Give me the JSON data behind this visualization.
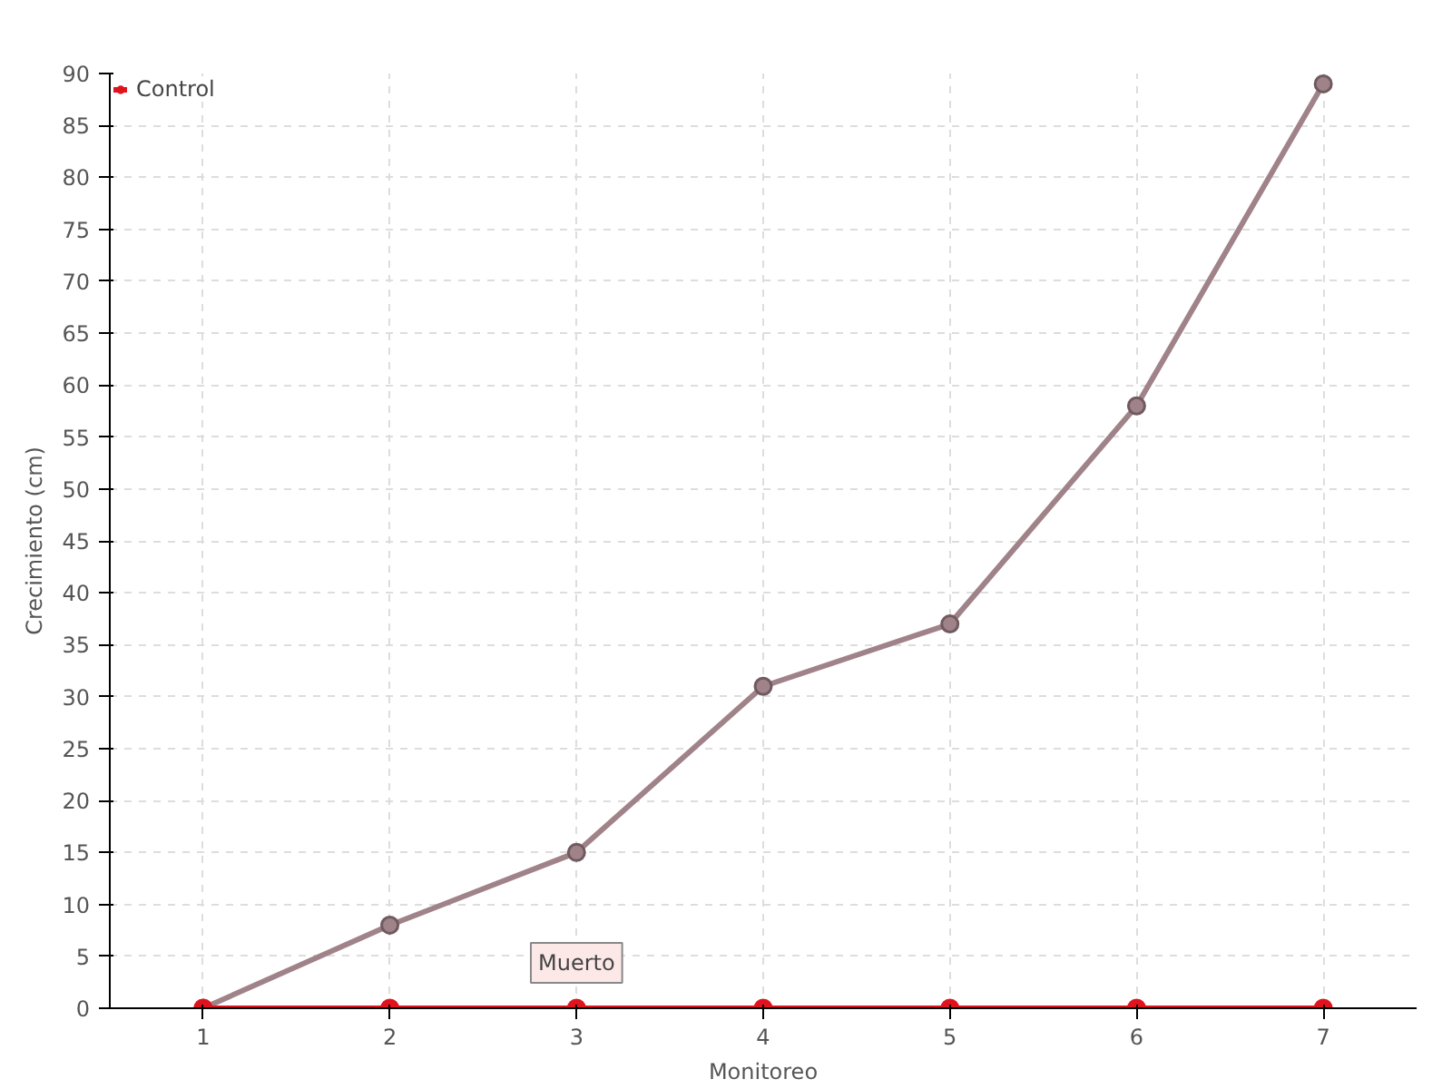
{
  "chart_data": {
    "type": "line",
    "xlabel": "Monitoreo",
    "ylabel": "Crecimiento (cm)",
    "categories": [
      "1",
      "2",
      "3",
      "4",
      "5",
      "6",
      "7"
    ],
    "series": [
      {
        "color": "#a08389",
        "values": [
          0,
          8,
          15,
          31,
          37,
          58,
          89
        ]
      },
      {
        "name": "Control",
        "color": "#e0141e",
        "values": [
          0,
          0,
          0,
          0,
          0,
          0,
          0
        ]
      }
    ],
    "ylim": [
      0,
      90
    ],
    "yticks": [
      0,
      5,
      10,
      15,
      20,
      25,
      30,
      35,
      40,
      45,
      50,
      55,
      60,
      65,
      70,
      75,
      80,
      85,
      90
    ],
    "grid": true,
    "legend": "top left",
    "marker": "circle",
    "line_style": "solid",
    "annotations": [
      {
        "text": "Muerto",
        "x": "3",
        "y": 0
      }
    ]
  }
}
